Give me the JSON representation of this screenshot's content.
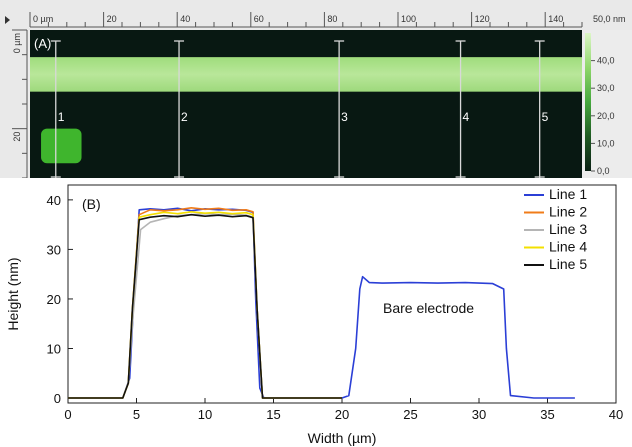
{
  "chart_data": [
    {
      "panel_label": "(A)",
      "type": "heatmap",
      "x_ticks": [
        "0 µm",
        "20",
        "40",
        "60",
        "80",
        "100",
        "120",
        "140"
      ],
      "y_ticks": [
        "0 µm",
        "20"
      ],
      "x_range": [
        0,
        150
      ],
      "y_range": [
        0,
        30
      ],
      "colorbar": {
        "unit_label": "50,0 nm",
        "ticks": [
          "40,0",
          "30,0",
          "20,0",
          "10,0",
          "0,0"
        ],
        "values": [
          40,
          30,
          20,
          10,
          0
        ],
        "range": [
          0,
          50
        ],
        "colors": [
          "#0a1f14",
          "#1f5a22",
          "#46a83e",
          "#8fd76a",
          "#ddf6c8"
        ]
      },
      "stripe": {
        "y_from": 5.5,
        "y_to": 12.5
      },
      "square": {
        "x_from": 3,
        "x_to": 14,
        "y_from": 20,
        "y_to": 27
      },
      "line_markers": [
        {
          "label": "1",
          "x": 7
        },
        {
          "label": "2",
          "x": 40.5
        },
        {
          "label": "3",
          "x": 84
        },
        {
          "label": "4",
          "x": 117
        },
        {
          "label": "5",
          "x": 138.5
        }
      ]
    },
    {
      "panel_label": "(B)",
      "type": "line",
      "xlabel": "Width (µm)",
      "ylabel": "Height (nm)",
      "xlim": [
        0,
        40
      ],
      "ylim": [
        -1,
        43
      ],
      "x_ticks": [
        0,
        5,
        10,
        15,
        20,
        25,
        30,
        35,
        40
      ],
      "y_ticks": [
        0,
        10,
        20,
        30,
        40
      ],
      "grid": false,
      "legend_position": "top-right",
      "annotation": {
        "text": "Bare electrode",
        "x": 27.5,
        "y": 20
      },
      "series": [
        {
          "name": "Line 1",
          "color": "#2b3fd6",
          "x": [
            0,
            4,
            4.5,
            4.8,
            5.2,
            6,
            7,
            8,
            9,
            10,
            11,
            12,
            13,
            13.5,
            13.7,
            14,
            14.3,
            16,
            18,
            20,
            20.5,
            21,
            21.3,
            21.5,
            22,
            23,
            25,
            27,
            29,
            31,
            31.8,
            32,
            32.3,
            34,
            36,
            37
          ],
          "y": [
            0,
            0,
            4,
            20,
            38,
            38.2,
            38,
            38.3,
            37.8,
            38.2,
            38,
            38.1,
            37.9,
            37.5,
            20,
            2,
            0,
            0,
            0,
            0,
            0.5,
            10,
            22,
            24.5,
            23.3,
            23.2,
            23.3,
            23.2,
            23.3,
            23.1,
            22,
            10,
            0.5,
            0,
            0,
            0
          ]
        },
        {
          "name": "Line 2",
          "color": "#f07c1a",
          "x": [
            0,
            4,
            4.4,
            4.7,
            5.2,
            6,
            7,
            8,
            9,
            10,
            11,
            12,
            13,
            13.5,
            13.8,
            14.2,
            16,
            18,
            20
          ],
          "y": [
            0,
            0,
            3,
            18,
            37,
            38,
            37.8,
            38,
            38.4,
            38.1,
            38.3,
            37.9,
            38,
            37.6,
            18,
            0,
            0,
            0,
            0
          ]
        },
        {
          "name": "Line 3",
          "color": "#b5b5b5",
          "x": [
            0,
            4,
            4.4,
            4.7,
            5.3,
            6,
            7,
            8,
            9,
            10,
            11,
            12,
            13,
            13.5,
            13.8,
            14.2,
            16,
            18,
            20
          ],
          "y": [
            0,
            0,
            3,
            15,
            34,
            35.5,
            36.2,
            36.8,
            37,
            37.2,
            37,
            37.1,
            36.9,
            36.5,
            18,
            0,
            0,
            0,
            0
          ]
        },
        {
          "name": "Line 4",
          "color": "#f3e000",
          "x": [
            0,
            4,
            4.4,
            4.7,
            5.2,
            6,
            7,
            8,
            9,
            10,
            11,
            12,
            13,
            13.5,
            13.8,
            14.2,
            16,
            18,
            20
          ],
          "y": [
            0,
            0,
            3,
            18,
            36.5,
            37,
            37.5,
            37.2,
            37.6,
            37.3,
            37.5,
            37.2,
            37.4,
            37,
            18,
            0,
            0,
            0,
            0
          ]
        },
        {
          "name": "Line 5",
          "color": "#111111",
          "x": [
            0,
            4,
            4.4,
            4.7,
            5.2,
            6,
            7,
            8,
            9,
            10,
            11,
            12,
            13,
            13.5,
            13.8,
            14.2,
            16,
            18,
            20
          ],
          "y": [
            0,
            0,
            3,
            18,
            36,
            36.5,
            36.8,
            36.6,
            37,
            36.7,
            36.9,
            36.6,
            36.8,
            36.4,
            18,
            0,
            0,
            0,
            0
          ]
        }
      ]
    }
  ]
}
